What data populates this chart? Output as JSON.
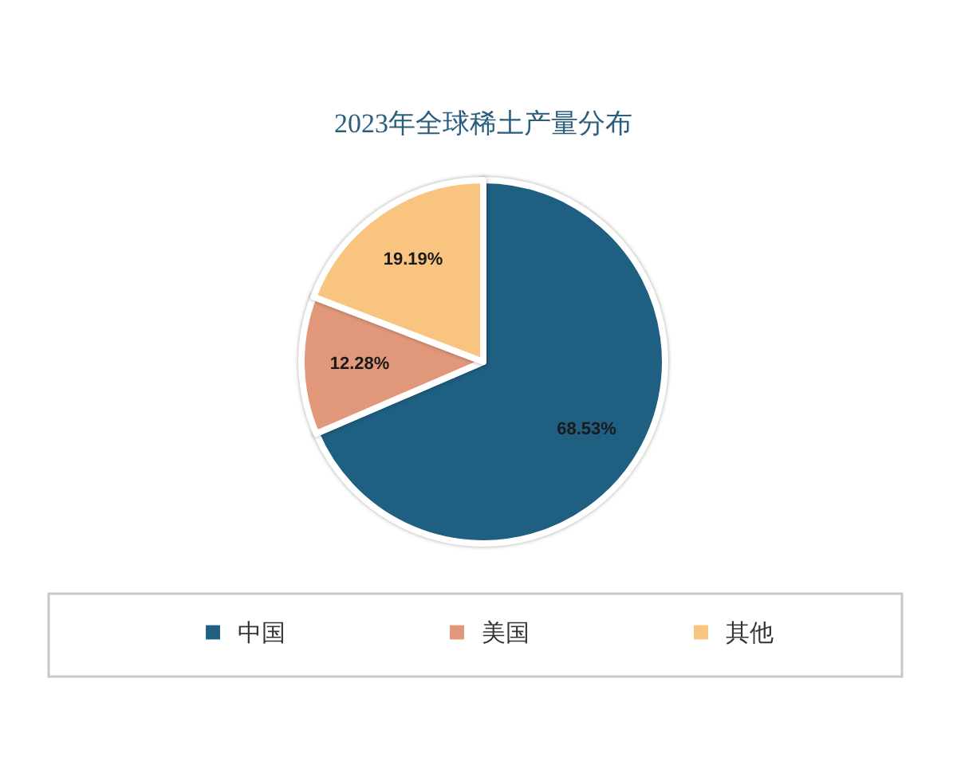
{
  "chart_data": {
    "type": "pie",
    "title": "2023年全球稀土产量分布",
    "categories": [
      "中国",
      "美国",
      "其他"
    ],
    "values": [
      68.53,
      12.28,
      19.19
    ],
    "colors": [
      "#1f5f82",
      "#e0977a",
      "#f9c47f"
    ],
    "value_labels": [
      "68.53%",
      "12.28%",
      "19.19%"
    ],
    "legend": "bottom"
  }
}
